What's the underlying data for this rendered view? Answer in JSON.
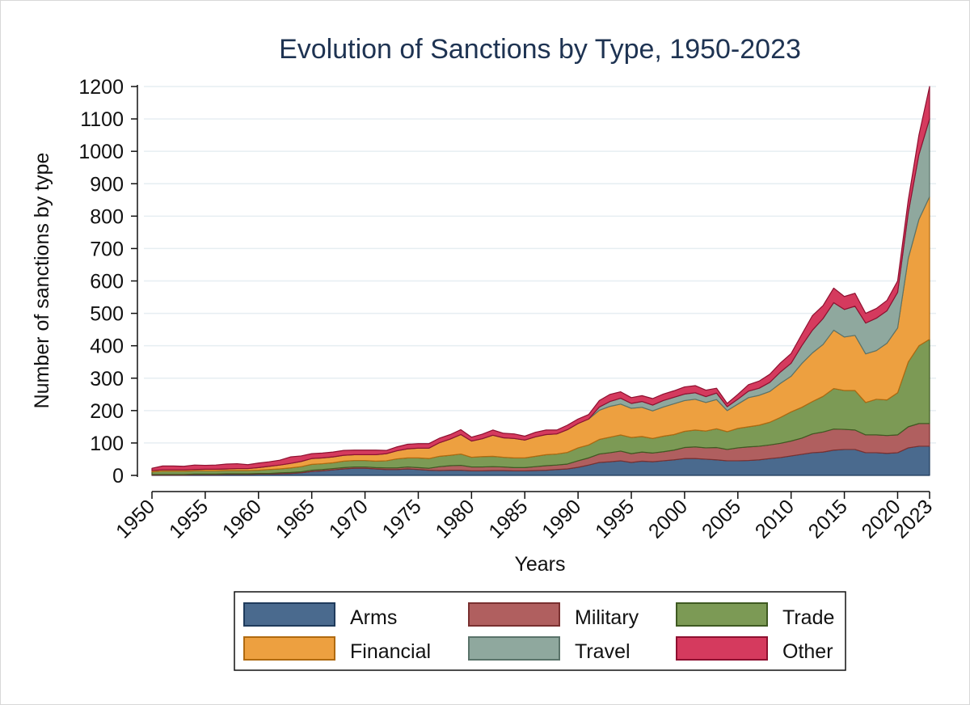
{
  "chart_data": {
    "type": "area",
    "stacked": true,
    "title": "Evolution of Sanctions by Type, 1950-2023",
    "xlabel": "Years",
    "ylabel": "Number of sanctions by type",
    "xlim": [
      1950,
      2023
    ],
    "ylim": [
      0,
      1200
    ],
    "x_ticks": [
      1950,
      1955,
      1960,
      1965,
      1970,
      1975,
      1980,
      1985,
      1990,
      1995,
      2000,
      2005,
      2010,
      2015,
      2020,
      2023
    ],
    "y_ticks": [
      0,
      100,
      200,
      300,
      400,
      500,
      600,
      700,
      800,
      900,
      1000,
      1100,
      1200
    ],
    "grid": true,
    "legend_position": "bottom",
    "years": [
      1950,
      1951,
      1952,
      1953,
      1954,
      1955,
      1956,
      1957,
      1958,
      1959,
      1960,
      1961,
      1962,
      1963,
      1964,
      1965,
      1966,
      1967,
      1968,
      1969,
      1970,
      1971,
      1972,
      1973,
      1974,
      1975,
      1976,
      1977,
      1978,
      1979,
      1980,
      1981,
      1982,
      1983,
      1984,
      1985,
      1986,
      1987,
      1988,
      1989,
      1990,
      1991,
      1992,
      1993,
      1994,
      1995,
      1996,
      1997,
      1998,
      1999,
      2000,
      2001,
      2002,
      2003,
      2004,
      2005,
      2006,
      2007,
      2008,
      2009,
      2010,
      2011,
      2012,
      2013,
      2014,
      2015,
      2016,
      2017,
      2018,
      2019,
      2020,
      2021,
      2022,
      2023
    ],
    "series": [
      {
        "name": "Arms",
        "color": "#4a6a8e",
        "edge": "#1f3b5c",
        "values": [
          1,
          1,
          1,
          1,
          2,
          2,
          2,
          3,
          3,
          3,
          4,
          4,
          5,
          6,
          8,
          12,
          14,
          17,
          20,
          22,
          22,
          20,
          18,
          18,
          20,
          18,
          16,
          15,
          16,
          16,
          14,
          14,
          15,
          15,
          14,
          14,
          15,
          16,
          18,
          20,
          25,
          32,
          40,
          42,
          45,
          40,
          44,
          42,
          45,
          48,
          52,
          52,
          50,
          48,
          45,
          45,
          46,
          48,
          52,
          55,
          60,
          65,
          70,
          72,
          78,
          80,
          80,
          70,
          70,
          68,
          70,
          85,
          90,
          90
        ]
      },
      {
        "name": "Military",
        "color": "#b05f5f",
        "edge": "#7a3030",
        "values": [
          2,
          2,
          2,
          2,
          2,
          2,
          2,
          2,
          2,
          2,
          2,
          2,
          3,
          3,
          3,
          4,
          4,
          4,
          4,
          4,
          4,
          4,
          5,
          5,
          6,
          6,
          6,
          12,
          14,
          15,
          12,
          12,
          12,
          11,
          10,
          10,
          12,
          14,
          14,
          15,
          20,
          22,
          26,
          28,
          30,
          27,
          28,
          27,
          28,
          30,
          34,
          36,
          35,
          38,
          35,
          40,
          42,
          42,
          42,
          44,
          46,
          50,
          58,
          62,
          65,
          62,
          60,
          55,
          55,
          55,
          55,
          65,
          70,
          70
        ]
      },
      {
        "name": "Trade",
        "color": "#7c9a55",
        "edge": "#3f5a22",
        "values": [
          8,
          10,
          10,
          10,
          10,
          10,
          10,
          10,
          10,
          10,
          10,
          12,
          12,
          14,
          16,
          18,
          18,
          18,
          20,
          20,
          20,
          20,
          22,
          28,
          28,
          30,
          30,
          32,
          32,
          35,
          30,
          32,
          32,
          30,
          30,
          30,
          32,
          34,
          34,
          36,
          40,
          40,
          45,
          48,
          50,
          50,
          48,
          45,
          48,
          48,
          50,
          52,
          52,
          58,
          55,
          60,
          62,
          65,
          70,
          80,
          90,
          95,
          100,
          110,
          125,
          120,
          122,
          100,
          110,
          110,
          130,
          200,
          240,
          260
        ]
      },
      {
        "name": "Financial",
        "color": "#eda040",
        "edge": "#b06a10",
        "values": [
          4,
          4,
          4,
          4,
          4,
          5,
          5,
          5,
          6,
          6,
          8,
          10,
          12,
          14,
          16,
          18,
          18,
          18,
          18,
          18,
          18,
          20,
          22,
          25,
          28,
          30,
          32,
          42,
          50,
          60,
          50,
          55,
          65,
          60,
          60,
          55,
          60,
          62,
          62,
          70,
          75,
          80,
          90,
          95,
          95,
          90,
          90,
          85,
          90,
          95,
          95,
          95,
          88,
          90,
          65,
          75,
          90,
          92,
          95,
          105,
          110,
          135,
          150,
          160,
          180,
          165,
          170,
          150,
          150,
          175,
          200,
          320,
          390,
          440
        ]
      },
      {
        "name": "Travel",
        "color": "#8fa89e",
        "edge": "#5a736a",
        "values": [
          0,
          0,
          0,
          0,
          0,
          0,
          0,
          0,
          0,
          0,
          0,
          0,
          0,
          0,
          0,
          0,
          0,
          0,
          0,
          0,
          0,
          0,
          0,
          0,
          0,
          0,
          0,
          0,
          0,
          0,
          0,
          0,
          0,
          0,
          0,
          0,
          0,
          0,
          0,
          0,
          0,
          0,
          10,
          15,
          18,
          15,
          18,
          18,
          20,
          20,
          20,
          20,
          18,
          20,
          12,
          15,
          20,
          22,
          28,
          35,
          40,
          55,
          70,
          80,
          85,
          85,
          90,
          95,
          100,
          100,
          110,
          140,
          200,
          240
        ]
      },
      {
        "name": "Other",
        "color": "#d53a5e",
        "edge": "#8e1030",
        "values": [
          7,
          12,
          12,
          11,
          14,
          12,
          13,
          15,
          15,
          12,
          14,
          14,
          15,
          20,
          17,
          15,
          15,
          15,
          15,
          14,
          14,
          14,
          10,
          12,
          14,
          14,
          14,
          14,
          14,
          15,
          12,
          14,
          16,
          14,
          14,
          12,
          14,
          14,
          12,
          14,
          14,
          14,
          20,
          22,
          20,
          18,
          18,
          20,
          20,
          20,
          22,
          22,
          20,
          15,
          10,
          15,
          20,
          22,
          25,
          28,
          30,
          35,
          45,
          40,
          45,
          40,
          40,
          30,
          30,
          32,
          35,
          40,
          60,
          100
        ]
      }
    ],
    "legend_entries": [
      "Arms",
      "Military",
      "Trade",
      "Financial",
      "Travel",
      "Other"
    ]
  }
}
